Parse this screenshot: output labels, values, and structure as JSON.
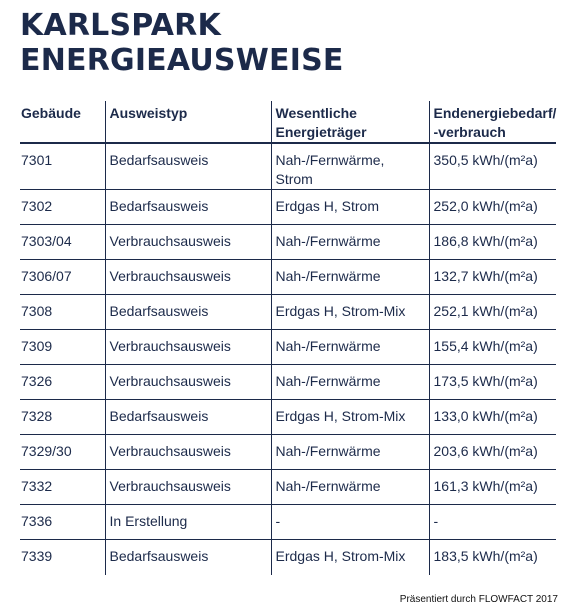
{
  "title": {
    "line1": "KARLSPARK",
    "line2": "ENERGIEAUSWEISE"
  },
  "table": {
    "headers": {
      "building": "Gebäude",
      "type": "Ausweistyp",
      "carrier_line1": "Wesentliche",
      "carrier_line2": "Energieträger",
      "demand_line1": "Endenergiebedarf/",
      "demand_line2": "-verbrauch"
    },
    "rows": [
      {
        "building": "7301",
        "type": "Bedarfsausweis",
        "carrier_line1": "Nah-/Fernwärme,",
        "carrier_line2": "Strom",
        "demand": "350,5 kWh/(m²a)"
      },
      {
        "building": "7302",
        "type": "Bedarfsausweis",
        "carrier_line1": "Erdgas H, Strom",
        "demand": "252,0 kWh/(m²a)"
      },
      {
        "building": "7303/04",
        "type": "Verbrauchsausweis",
        "carrier_line1": "Nah-/Fernwärme",
        "demand": "186,8 kWh/(m²a)"
      },
      {
        "building": "7306/07",
        "type": "Verbrauchsausweis",
        "carrier_line1": "Nah-/Fernwärme",
        "demand": "132,7 kWh/(m²a)"
      },
      {
        "building": "7308",
        "type": "Bedarfsausweis",
        "carrier_line1": "Erdgas H, Strom-Mix",
        "demand": "252,1 kWh/(m²a)"
      },
      {
        "building": "7309",
        "type": "Verbrauchsausweis",
        "carrier_line1": "Nah-/Fernwärme",
        "demand": "155,4 kWh/(m²a)"
      },
      {
        "building": "7326",
        "type": "Verbrauchsausweis",
        "carrier_line1": "Nah-/Fernwärme",
        "demand": "173,5 kWh/(m²a)"
      },
      {
        "building": "7328",
        "type": "Bedarfsausweis",
        "carrier_line1": "Erdgas H, Strom-Mix",
        "demand": "133,0 kWh/(m²a)"
      },
      {
        "building": "7329/30",
        "type": "Verbrauchsausweis",
        "carrier_line1": "Nah-/Fernwärme",
        "demand": "203,6 kWh/(m²a)"
      },
      {
        "building": "7332",
        "type": "Verbrauchsausweis",
        "carrier_line1": "Nah-/Fernwärme",
        "demand": "161,3 kWh/(m²a)"
      },
      {
        "building": "7336",
        "type": "In Erstellung",
        "carrier_line1": "-",
        "demand": "-"
      },
      {
        "building": "7339",
        "type": "Bedarfsausweis",
        "carrier_line1": "Erdgas H, Strom-Mix",
        "demand": "183,5 kWh/(m²a)"
      }
    ]
  },
  "footer": {
    "text": "Präsentiert durch FLOWFACT 2017"
  },
  "colors": {
    "title": "#1c2a4a",
    "rule": "#1c2a4a",
    "background": "#ffffff"
  }
}
